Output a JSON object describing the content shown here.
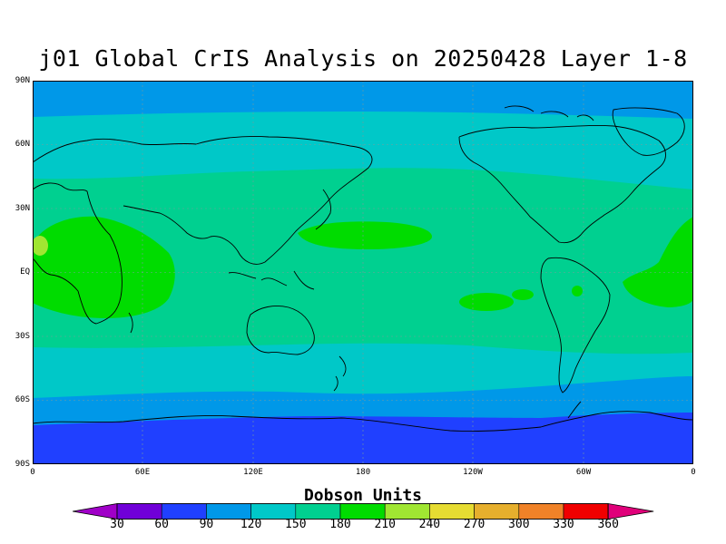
{
  "map": {
    "title": "j01 Global CrIS Analysis on 20250428 Layer 1-8",
    "lat_labels": [
      "90N",
      "60N",
      "30N",
      "EQ",
      "30S",
      "60S",
      "90S"
    ],
    "lon_labels": [
      "0",
      "60E",
      "120E",
      "180",
      "120W",
      "60W",
      "0"
    ],
    "units_label": "Dobson Units",
    "colorbar_values": [
      "30",
      "60",
      "90",
      "120",
      "150",
      "180",
      "210",
      "240",
      "270",
      "300",
      "330",
      "360"
    ],
    "colorbar_colors": [
      "#a000c8",
      "#7000d8",
      "#2040ff",
      "#0098e8",
      "#00c8c8",
      "#00d090",
      "#00dc00",
      "#a0e632",
      "#e6dc32",
      "#e6af2d",
      "#f08228",
      "#f00000",
      "#e0007a"
    ],
    "ocean_color": "#0098e8"
  }
}
